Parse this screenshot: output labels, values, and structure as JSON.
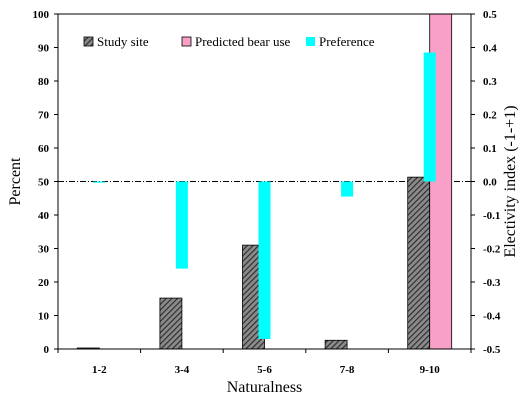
{
  "chart_data": {
    "type": "bar",
    "title": "",
    "xlabel": "Naturalness",
    "ylabel": "Percent",
    "y2label": "Electivity index (-1-+1)",
    "categories": [
      "1-2",
      "3-4",
      "5-6",
      "7-8",
      "9-10"
    ],
    "ylim": [
      0,
      100
    ],
    "y_ticks": [
      "0",
      "10",
      "20",
      "30",
      "40",
      "50",
      "60",
      "70",
      "80",
      "90",
      "100"
    ],
    "y2lim": [
      -0.5,
      0.5
    ],
    "y2_ticks": [
      "-0.5",
      "-0.4",
      "-0.3",
      "-0.2",
      "-0.1",
      "0.0",
      "0.1",
      "0.2",
      "0.3",
      "0.4",
      "0.5"
    ],
    "reference_line": {
      "axis": "y2",
      "value": 0.0,
      "style": "dash-dot"
    },
    "legend_position": "top",
    "series": [
      {
        "name": "Study site",
        "axis": "y",
        "color": "#555555",
        "pattern": "diagonal-hatch",
        "values": [
          0.3,
          15.2,
          31.0,
          2.6,
          51.3
        ]
      },
      {
        "name": "Predicted bear use",
        "axis": "y",
        "color": "#f9a0c8",
        "pattern": "solid",
        "values": [
          0,
          0,
          0,
          0,
          100
        ]
      },
      {
        "name": "Preference",
        "axis": "y2",
        "color": "#00ffff",
        "pattern": "solid",
        "values": [
          0.0,
          -0.26,
          -0.47,
          -0.045,
          0.385
        ]
      }
    ]
  }
}
